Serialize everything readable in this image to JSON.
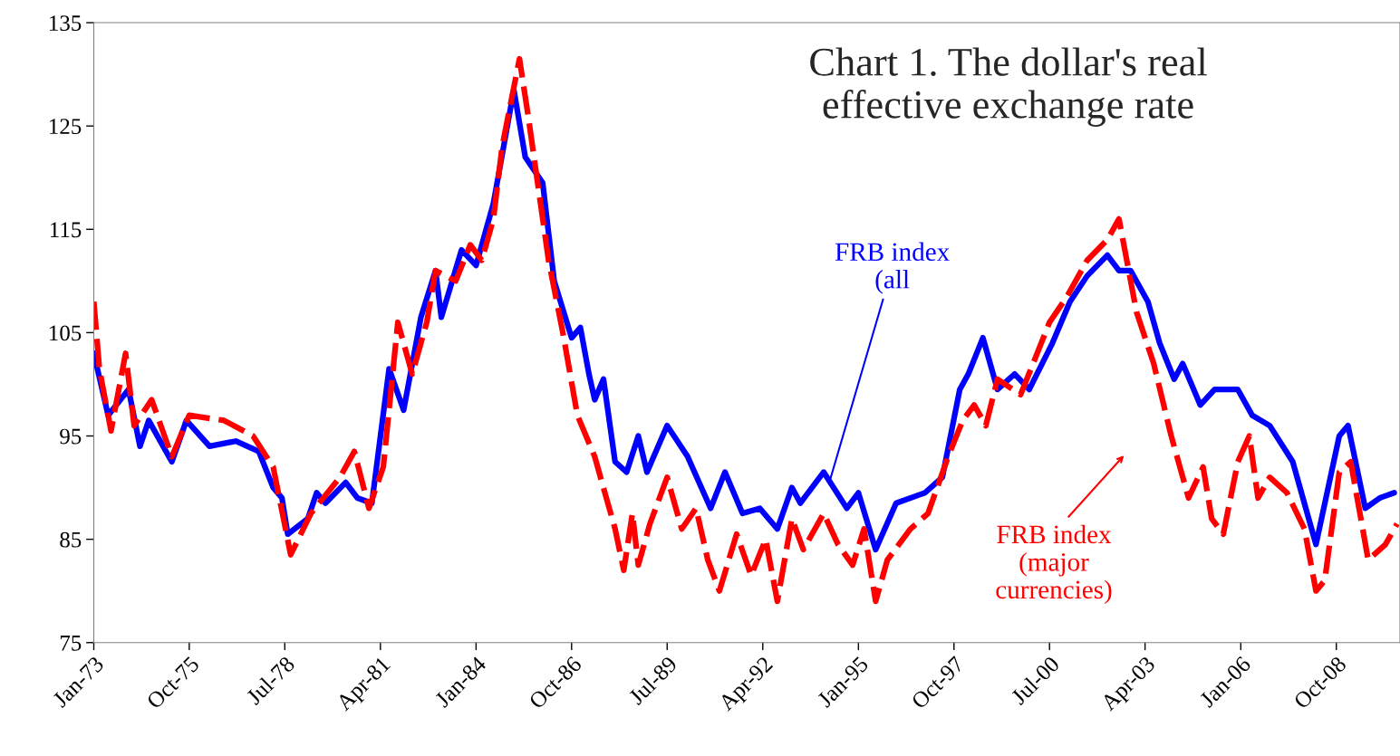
{
  "chart_data": {
    "type": "line",
    "title": "Chart 1. The dollar's real\neffective exchange rate",
    "series": [
      {
        "name": null,
        "color": "#0000ff",
        "line_style": "solid",
        "x": [
          "1973-01",
          "1973-06",
          "1974-01",
          "1974-05",
          "1974-08",
          "1975-04",
          "1975-09",
          "1976-05",
          "1977-02",
          "1977-10",
          "1978-03",
          "1978-06",
          "1978-08",
          "1979-03",
          "1979-06",
          "1979-09",
          "1980-04",
          "1980-08",
          "1981-01",
          "1981-07",
          "1981-12",
          "1982-06",
          "1982-11",
          "1983-01",
          "1983-08",
          "1984-01",
          "1984-07",
          "1985-02",
          "1985-06",
          "1985-12",
          "1986-04",
          "1986-10",
          "1987-01",
          "1987-04",
          "1987-06",
          "1987-09",
          "1988-01",
          "1988-05",
          "1988-09",
          "1988-12",
          "1989-07",
          "1990-02",
          "1990-10",
          "1991-03",
          "1991-09",
          "1992-03",
          "1992-09",
          "1993-02",
          "1993-05",
          "1994-01",
          "1994-09",
          "1995-01",
          "1995-07",
          "1996-02",
          "1996-12",
          "1997-06",
          "1997-12",
          "1998-03",
          "1998-08",
          "1999-01",
          "1999-07",
          "1999-12",
          "2000-08",
          "2001-02",
          "2001-08",
          "2002-03",
          "2002-07",
          "2002-11",
          "2003-05",
          "2003-09",
          "2004-02",
          "2004-05",
          "2004-11",
          "2005-04",
          "2005-12",
          "2006-05",
          "2006-11",
          "2007-07",
          "2008-03",
          "2008-11",
          "2009-02",
          "2009-08",
          "2010-01",
          "2010-06"
        ],
        "values": [
          103,
          97,
          99.5,
          94,
          96.5,
          92.5,
          96.5,
          94,
          94.5,
          93.5,
          90,
          89,
          85.5,
          87,
          89.5,
          88.5,
          90.5,
          89,
          88.5,
          101.5,
          97.5,
          106.5,
          111,
          106.5,
          113,
          111.5,
          117.5,
          128.5,
          122,
          119.5,
          110,
          104.5,
          105.5,
          101,
          98.5,
          100.5,
          92.5,
          91.5,
          95,
          91.5,
          96,
          93,
          88,
          91.5,
          87.5,
          88,
          86,
          90,
          88.5,
          91.5,
          88,
          89.5,
          84,
          88.5,
          89.5,
          91,
          99.5,
          101,
          104.5,
          99.5,
          101,
          99.5,
          104,
          108,
          110.5,
          112.5,
          111,
          111,
          108,
          104,
          100.5,
          102,
          98,
          99.5,
          99.5,
          97,
          96,
          92.5,
          84.5,
          95,
          96,
          88,
          89,
          89.5
        ]
      },
      {
        "name": null,
        "color": "#ff0000",
        "line_style": "dashed",
        "x": [
          "1973-01",
          "1973-03",
          "1973-07",
          "1973-12",
          "1974-03",
          "1974-09",
          "1975-04",
          "1975-10",
          "1976-10",
          "1977-08",
          "1978-03",
          "1978-09",
          "1979-04",
          "1980-02",
          "1980-07",
          "1980-12",
          "1981-05",
          "1981-10",
          "1982-03",
          "1982-08",
          "1982-11",
          "1983-06",
          "1983-11",
          "1984-03",
          "1984-07",
          "1984-10",
          "1985-04",
          "1985-07",
          "1986-02",
          "1986-07",
          "1986-12",
          "1987-06",
          "1987-10",
          "1988-01",
          "1988-04",
          "1988-07",
          "1988-09",
          "1989-01",
          "1989-07",
          "1989-12",
          "1990-05",
          "1990-09",
          "1991-01",
          "1991-07",
          "1991-12",
          "1992-05",
          "1992-09",
          "1993-02",
          "1993-06",
          "1994-01",
          "1994-06",
          "1994-11",
          "1995-03",
          "1995-07",
          "1995-11",
          "1996-07",
          "1997-01",
          "1997-08",
          "1998-01",
          "1998-05",
          "1998-09",
          "1999-01",
          "1999-09",
          "2000-02",
          "2000-07",
          "2001-01",
          "2001-08",
          "2002-03",
          "2002-07",
          "2003-01",
          "2003-07",
          "2004-01",
          "2004-04",
          "2004-07",
          "2004-12",
          "2005-03",
          "2005-07",
          "2005-12",
          "2006-04",
          "2006-07",
          "2006-11",
          "2007-05",
          "2007-11",
          "2008-03",
          "2008-06",
          "2008-11",
          "2009-03",
          "2009-09",
          "2010-03",
          "2010-07"
        ],
        "values": [
          108,
          101.5,
          95.5,
          103,
          96,
          98.5,
          93,
          97,
          96.5,
          95,
          92,
          83.5,
          87.5,
          91,
          93.5,
          88,
          92,
          106,
          101,
          106,
          111,
          110,
          113.5,
          112,
          116,
          123,
          131.5,
          126,
          112,
          105,
          97,
          93,
          89,
          86,
          82,
          87.5,
          82.5,
          86.5,
          91,
          86,
          88,
          83,
          80,
          85.5,
          81.5,
          85,
          79,
          87,
          84,
          87.5,
          84.5,
          82.5,
          86,
          79,
          83,
          86,
          87.5,
          93,
          96.5,
          98,
          96,
          100.5,
          99,
          102.5,
          106,
          108.5,
          112,
          114,
          116,
          107,
          102,
          95,
          92,
          89,
          92,
          87,
          85.5,
          92.5,
          95,
          89,
          91,
          89.5,
          86,
          80,
          81,
          91.5,
          92.5,
          83,
          84.5,
          86.5
        ]
      }
    ],
    "xlim": [
      "1973-01",
      "2010-08"
    ],
    "xticks": [
      {
        "value": "1973-01",
        "label": "Jan-73"
      },
      {
        "value": "1975-10",
        "label": "Oct-75"
      },
      {
        "value": "1978-07",
        "label": "Jul-78"
      },
      {
        "value": "1981-04",
        "label": "Apr-81"
      },
      {
        "value": "1984-01",
        "label": "Jan-84"
      },
      {
        "value": "1986-10",
        "label": "Oct-86"
      },
      {
        "value": "1989-07",
        "label": "Jul-89"
      },
      {
        "value": "1992-04",
        "label": "Apr-92"
      },
      {
        "value": "1995-01",
        "label": "Jan-95"
      },
      {
        "value": "1997-10",
        "label": "Oct-97"
      },
      {
        "value": "2000-07",
        "label": "Jul-00"
      },
      {
        "value": "2003-04",
        "label": "Apr-03"
      },
      {
        "value": "2006-01",
        "label": "Jan-06"
      },
      {
        "value": "2008-10",
        "label": "Oct-08"
      }
    ],
    "ylim": [
      75,
      135
    ],
    "yticks": [
      75,
      85,
      95,
      105,
      115,
      125,
      135
    ],
    "annotations": [
      {
        "text": "FRB index\n(all",
        "x": "1994-03",
        "y": 90.5
      },
      "FRB index\n(major\ncurrencies)"
    ],
    "grid": false,
    "legend": false,
    "marker": "none"
  }
}
